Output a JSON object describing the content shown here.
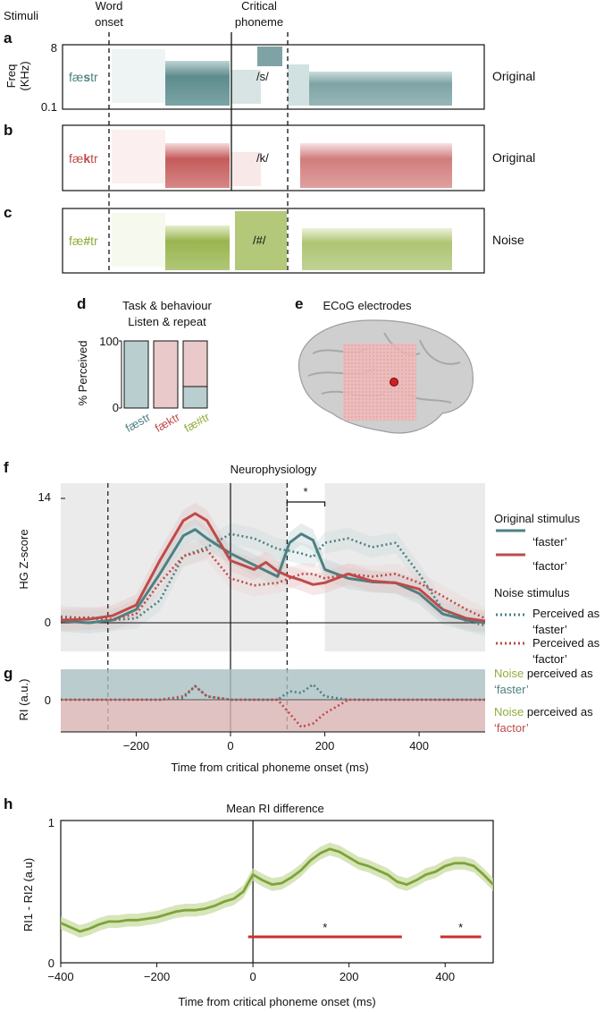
{
  "headers": {
    "stimuli": "Stimuli",
    "word_onset_1": "Word",
    "word_onset_2": "onset",
    "critical_1": "Critical",
    "critical_2": "phoneme"
  },
  "panels": {
    "a": {
      "letter": "a",
      "word_pre": "fæ",
      "word_key": "s",
      "word_post": "tr",
      "phoneme": "/s/",
      "condition": "Original",
      "ylabel_1": "Freq",
      "ylabel_2": "(KHz)",
      "ytick_top": "8",
      "ytick_bottom": "0.1"
    },
    "b": {
      "letter": "b",
      "word_pre": "fæ",
      "word_key": "k",
      "word_post": "tr",
      "phoneme": "/k/",
      "condition": "Original"
    },
    "c": {
      "letter": "c",
      "word_pre": "fæ",
      "word_key": "#",
      "word_post": "tr",
      "phoneme": "/#/",
      "condition": "Noise"
    },
    "d": {
      "letter": "d",
      "title_1": "Task & behaviour",
      "title_2": "Listen & repeat",
      "ylabel": "% Perceived",
      "ytick_100": "100",
      "ytick_0": "0",
      "labels": [
        "fæstr",
        "fæktr",
        "fæ#tr"
      ]
    },
    "e": {
      "letter": "e",
      "title": "ECoG electrodes"
    },
    "f": {
      "letter": "f",
      "title": "Neurophysiology",
      "ylabel": "HG Z-score",
      "ytick_top": "14",
      "ytick_zero": "0",
      "star": "*"
    },
    "g": {
      "letter": "g",
      "ylabel": "RI (a.u.)",
      "ytick_zero": "0",
      "xlabel": "Time from critical phoneme onset (ms)",
      "xticks": [
        "−200",
        "0",
        "200",
        "400"
      ]
    },
    "h": {
      "letter": "h",
      "title": "Mean RI difference",
      "ylabel": "RI1 - RI2 (a.u)",
      "ytick_top": "1",
      "ytick_bottom": "0",
      "xlabel": "Time from critical phoneme onset (ms)",
      "xticks": [
        "−400",
        "−200",
        "0",
        "200",
        "400"
      ],
      "star1": "*",
      "star2": "*"
    }
  },
  "legend": {
    "original_title": "Original stimulus",
    "faster": "‘faster’",
    "factor": "‘factor’",
    "noise_title": "Noise stimulus",
    "perceived_as": "Perceived as",
    "faster2": "‘faster’",
    "factor2": "‘factor’",
    "g_noise": "Noise",
    "g_perceived_as": " perceived as",
    "g_faster": "‘faster’",
    "g_factor": "‘factor’"
  },
  "colors": {
    "teal": "#4d8082",
    "red": "#bf4a4a",
    "green": "#8fad3d",
    "shade": "#ebebeb",
    "teal_fill": "#b9cfcf",
    "red_fill": "#e9c9c9"
  },
  "chart_data": [
    {
      "type": "bar",
      "panel": "d",
      "categories": [
        "fæstr",
        "fæktr",
        "fæ#tr"
      ],
      "series": [
        {
          "values": [
            100,
            0,
            32
          ]
        },
        {
          "values": [
            0,
            100,
            68
          ]
        }
      ],
      "ylim": [
        0,
        100
      ]
    },
    {
      "type": "line",
      "panel": "f",
      "xlim": [
        -360,
        540
      ],
      "ylim": [
        -1,
        14
      ],
      "shaded_windows": [
        [
          -360,
          120
        ],
        [
          200,
          540
        ]
      ],
      "dashed_lines": [
        -260,
        120
      ],
      "significance": [
        120,
        200
      ],
      "series": [
        {
          "name": "‘faster’",
          "style": "solid",
          "color": "#4d8082",
          "x": [
            -360,
            -300,
            -250,
            -200,
            -150,
            -100,
            -75,
            -50,
            0,
            50,
            100,
            125,
            150,
            175,
            200,
            250,
            300,
            350,
            400,
            450,
            500,
            540
          ],
          "y": [
            0.2,
            0,
            0.3,
            1.5,
            5.5,
            9.8,
            10.5,
            9.5,
            7.8,
            6.5,
            5.2,
            9,
            10,
            9.3,
            6,
            5,
            4.6,
            4.5,
            3.3,
            1,
            0.3,
            0
          ]
        },
        {
          "name": "‘factor’",
          "style": "solid",
          "color": "#bf4a4a",
          "x": [
            -360,
            -300,
            -250,
            -200,
            -150,
            -100,
            -75,
            -50,
            0,
            50,
            75,
            100,
            125,
            150,
            175,
            200,
            250,
            300,
            350,
            400,
            450,
            500,
            540
          ],
          "y": [
            0.3,
            0.4,
            0.8,
            2,
            7,
            11.5,
            12.3,
            11.5,
            7,
            6,
            6.8,
            5.8,
            5.2,
            4.8,
            4.3,
            4.5,
            5.5,
            4.7,
            4.5,
            3.8,
            1.5,
            0.5,
            0.2
          ]
        },
        {
          "name": "Perceived as ‘faster’",
          "style": "dotted",
          "color": "#4d8082",
          "x": [
            -360,
            -300,
            -250,
            -200,
            -150,
            -100,
            -50,
            0,
            50,
            100,
            125,
            150,
            175,
            200,
            250,
            300,
            350,
            400,
            450,
            500,
            540
          ],
          "y": [
            0.7,
            0.5,
            0.3,
            0.5,
            2.5,
            7.5,
            8.5,
            10,
            9.5,
            8.3,
            8.1,
            7.8,
            7.4,
            9,
            9.5,
            8.5,
            9,
            5.5,
            1.5,
            0.2,
            -0.3
          ]
        },
        {
          "name": "Perceived as ‘factor’",
          "style": "dotted",
          "color": "#bf4a4a",
          "x": [
            -360,
            -300,
            -250,
            -200,
            -150,
            -100,
            -50,
            0,
            50,
            100,
            125,
            150,
            175,
            200,
            250,
            300,
            350,
            400,
            450,
            500,
            540
          ],
          "y": [
            0.5,
            0.6,
            0.4,
            1,
            4.5,
            7.5,
            8.2,
            5,
            4.2,
            4.5,
            5,
            5.5,
            5.5,
            5,
            5.5,
            5.2,
            5.5,
            4.5,
            3,
            1.5,
            0.5
          ]
        }
      ]
    },
    {
      "type": "line",
      "panel": "g",
      "xlim": [
        -360,
        540
      ],
      "ylim": [
        -1,
        1
      ],
      "series": [
        {
          "name": "Noise perceived as ‘faster’",
          "style": "dotted",
          "color": "#4d8082",
          "x": [
            -360,
            -250,
            -150,
            -100,
            -75,
            -50,
            0,
            100,
            125,
            150,
            175,
            200,
            250,
            400,
            540
          ],
          "y": [
            0,
            0,
            0,
            0.05,
            0.4,
            0.1,
            0,
            0,
            0.25,
            0.2,
            0.45,
            0.1,
            0,
            0,
            0
          ]
        },
        {
          "name": "Noise perceived as ‘factor’",
          "style": "dotted",
          "color": "#bf4a4a",
          "x": [
            -360,
            -250,
            -150,
            -100,
            -75,
            -50,
            0,
            100,
            125,
            150,
            175,
            200,
            250,
            400,
            540
          ],
          "y": [
            0,
            0,
            0,
            0.1,
            0.4,
            0.1,
            0,
            0,
            -0.4,
            -0.8,
            -0.7,
            -0.4,
            0,
            0,
            0
          ]
        }
      ]
    },
    {
      "type": "line",
      "panel": "h",
      "xlim": [
        -400,
        500
      ],
      "ylim": [
        0,
        1
      ],
      "significance": [
        [
          -10,
          310
        ],
        [
          390,
          475
        ]
      ],
      "series": [
        {
          "color": "#7fa23a",
          "x": [
            -400,
            -380,
            -360,
            -340,
            -320,
            -300,
            -280,
            -260,
            -240,
            -220,
            -200,
            -180,
            -160,
            -140,
            -120,
            -100,
            -80,
            -60,
            -40,
            -20,
            0,
            20,
            40,
            60,
            80,
            100,
            120,
            140,
            160,
            180,
            200,
            220,
            240,
            260,
            280,
            300,
            320,
            340,
            360,
            380,
            400,
            420,
            440,
            460,
            480,
            500
          ],
          "y": [
            0.28,
            0.25,
            0.22,
            0.24,
            0.27,
            0.29,
            0.29,
            0.3,
            0.3,
            0.31,
            0.32,
            0.34,
            0.36,
            0.37,
            0.37,
            0.38,
            0.4,
            0.43,
            0.45,
            0.5,
            0.62,
            0.58,
            0.55,
            0.56,
            0.6,
            0.65,
            0.72,
            0.77,
            0.8,
            0.78,
            0.74,
            0.7,
            0.68,
            0.65,
            0.62,
            0.57,
            0.55,
            0.58,
            0.62,
            0.64,
            0.68,
            0.7,
            0.7,
            0.68,
            0.62,
            0.55
          ]
        }
      ]
    }
  ]
}
